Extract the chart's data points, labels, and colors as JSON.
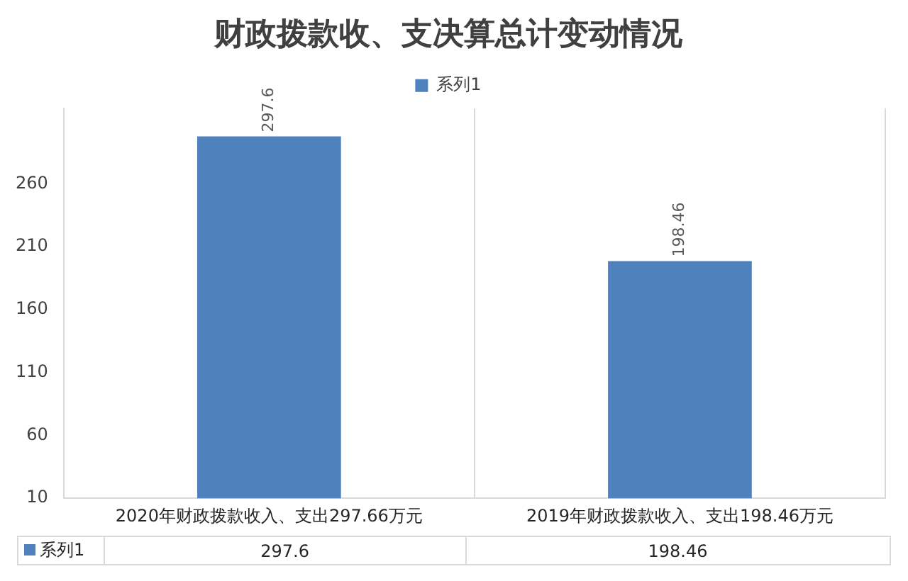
{
  "chart_data": {
    "type": "bar",
    "title": "财政拨款收、支决算总计变动情况",
    "categories": [
      "2020年财政拨款收入、支出297.66万元",
      "2019年财政拨款收入、支出198.46万元"
    ],
    "series": [
      {
        "name": "系列1",
        "color": "#4f81bd",
        "values": [
          297.6,
          198.46
        ],
        "value_labels": [
          "297.6",
          "198.46"
        ]
      }
    ],
    "ylim": [
      10,
      320
    ],
    "yticks": [
      10,
      60,
      110,
      160,
      210,
      260
    ],
    "grid": "x",
    "legend": "top",
    "data_labels": true
  }
}
